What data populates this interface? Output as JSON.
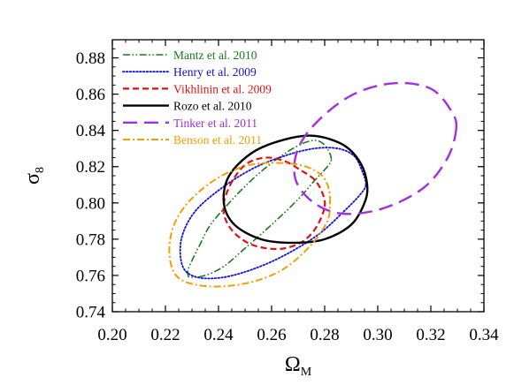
{
  "chart_data": {
    "type": "line",
    "xlabel": "Ω",
    "xlabel_sub": "M",
    "ylabel": "σ",
    "ylabel_sub": "8",
    "xlim": [
      0.2,
      0.34
    ],
    "ylim": [
      0.74,
      0.89
    ],
    "xticks": [
      0.2,
      0.22,
      0.24,
      0.26,
      0.28,
      0.3,
      0.32,
      0.34
    ],
    "xtick_labels": [
      "0.20",
      "0.22",
      "0.24",
      "0.26",
      "0.28",
      "0.30",
      "0.32",
      "0.34"
    ],
    "yticks": [
      0.74,
      0.76,
      0.78,
      0.8,
      0.82,
      0.84,
      0.86,
      0.88
    ],
    "ytick_labels": [
      "0.74",
      "0.76",
      "0.78",
      "0.80",
      "0.82",
      "0.84",
      "0.86",
      "0.88"
    ],
    "legend_position": "top-left",
    "series": [
      {
        "name": "Mantz et al. 2010",
        "color": "#1a7a1a",
        "dash": "dash-dot-dot",
        "x": [
          0.2825,
          0.281,
          0.278,
          0.274,
          0.268,
          0.26,
          0.252,
          0.244,
          0.237,
          0.233,
          0.229,
          0.2285,
          0.23,
          0.235,
          0.242,
          0.25,
          0.26,
          0.27,
          0.276,
          0.281,
          0.2825
        ],
        "y": [
          0.824,
          0.83,
          0.834,
          0.834,
          0.83,
          0.822,
          0.812,
          0.8,
          0.788,
          0.777,
          0.765,
          0.76,
          0.759,
          0.76,
          0.765,
          0.775,
          0.788,
          0.802,
          0.812,
          0.82,
          0.824
        ]
      },
      {
        "name": "Henry et al. 2009",
        "color": "#1010e0",
        "dash": "dotted",
        "x": [
          0.2955,
          0.294,
          0.291,
          0.285,
          0.276,
          0.265,
          0.253,
          0.241,
          0.231,
          0.226,
          0.2265,
          0.232,
          0.242,
          0.254,
          0.266,
          0.278,
          0.287,
          0.293,
          0.2955
        ],
        "y": [
          0.81,
          0.818,
          0.826,
          0.83,
          0.83,
          0.826,
          0.819,
          0.808,
          0.795,
          0.78,
          0.765,
          0.759,
          0.759,
          0.764,
          0.772,
          0.783,
          0.795,
          0.804,
          0.81
        ]
      },
      {
        "name": "Vikhlinin et al. 2009",
        "color": "#e01010",
        "dash": "dashed",
        "x": [
          0.28,
          0.279,
          0.276,
          0.271,
          0.265,
          0.258,
          0.251,
          0.246,
          0.2425,
          0.242,
          0.245,
          0.251,
          0.258,
          0.265,
          0.272,
          0.277,
          0.28
        ],
        "y": [
          0.798,
          0.806,
          0.813,
          0.818,
          0.823,
          0.825,
          0.822,
          0.814,
          0.803,
          0.794,
          0.785,
          0.778,
          0.775,
          0.775,
          0.779,
          0.787,
          0.798
        ]
      },
      {
        "name": "Rozo et al. 2010",
        "color": "#000000",
        "dash": "solid",
        "x": [
          0.296,
          0.2935,
          0.287,
          0.276,
          0.265,
          0.253,
          0.244,
          0.242,
          0.246,
          0.256,
          0.268,
          0.28,
          0.29,
          0.295,
          0.296
        ],
        "y": [
          0.81,
          0.822,
          0.832,
          0.837,
          0.835,
          0.828,
          0.815,
          0.8,
          0.788,
          0.78,
          0.778,
          0.78,
          0.788,
          0.8,
          0.81
        ]
      },
      {
        "name": "Tinker et al. 2011",
        "color": "#a030e0",
        "dash": "long-dash",
        "x": [
          0.3295,
          0.328,
          0.32,
          0.306,
          0.291,
          0.278,
          0.27,
          0.269,
          0.276,
          0.287,
          0.302,
          0.317,
          0.326,
          0.3295
        ],
        "y": [
          0.84,
          0.85,
          0.863,
          0.866,
          0.86,
          0.846,
          0.83,
          0.813,
          0.8,
          0.794,
          0.797,
          0.808,
          0.824,
          0.84
        ]
      },
      {
        "name": "Benson et al. 2011",
        "color": "#f0a000",
        "dash": "dash-dot",
        "x": [
          0.282,
          0.2815,
          0.279,
          0.273,
          0.264,
          0.252,
          0.24,
          0.229,
          0.223,
          0.2215,
          0.224,
          0.231,
          0.242,
          0.254,
          0.265,
          0.275,
          0.281,
          0.282
        ],
        "y": [
          0.8,
          0.808,
          0.815,
          0.82,
          0.822,
          0.821,
          0.814,
          0.801,
          0.787,
          0.772,
          0.76,
          0.755,
          0.754,
          0.757,
          0.764,
          0.777,
          0.79,
          0.8
        ]
      }
    ]
  }
}
